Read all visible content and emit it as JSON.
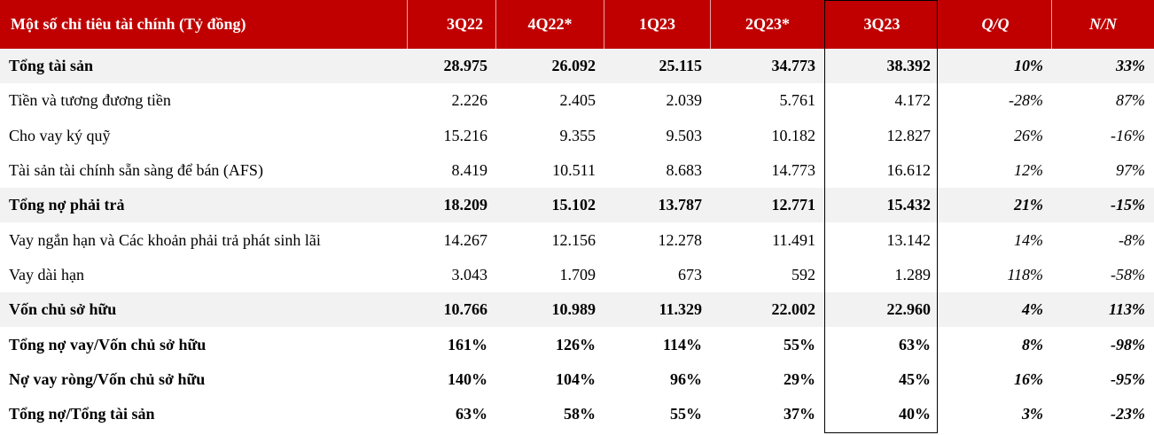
{
  "header": {
    "title": "Một số chỉ tiêu tài chính (Tỷ đồng)",
    "columns": [
      "3Q22",
      "4Q22*",
      "1Q23",
      "2Q23*",
      "3Q23",
      "Q/Q",
      "N/N"
    ]
  },
  "rows": [
    {
      "label": "Tổng tài sản",
      "values": [
        "28.975",
        "26.092",
        "25.115",
        "34.773",
        "38.392",
        "10%",
        "33%"
      ]
    },
    {
      "label": "Tiền và tương đương tiền",
      "values": [
        "2.226",
        "2.405",
        "2.039",
        "5.761",
        "4.172",
        "-28%",
        "87%"
      ]
    },
    {
      "label": "Cho vay ký quỹ",
      "values": [
        "15.216",
        "9.355",
        "9.503",
        "10.182",
        "12.827",
        "26%",
        "-16%"
      ]
    },
    {
      "label": "Tài sản tài chính sẵn sàng để bán (AFS)",
      "values": [
        "8.419",
        "10.511",
        "8.683",
        "14.773",
        "16.612",
        "12%",
        "97%"
      ]
    },
    {
      "label": "Tổng nợ phải trả",
      "values": [
        "18.209",
        "15.102",
        "13.787",
        "12.771",
        "15.432",
        "21%",
        "-15%"
      ]
    },
    {
      "label": "Vay ngắn hạn và Các khoản phải trả phát sinh lãi",
      "values": [
        "14.267",
        "12.156",
        "12.278",
        "11.491",
        "13.142",
        "14%",
        "-8%"
      ]
    },
    {
      "label": "Vay dài hạn",
      "values": [
        "3.043",
        "1.709",
        "673",
        "592",
        "1.289",
        "118%",
        "-58%"
      ]
    },
    {
      "label": "Vốn chủ sở hữu",
      "values": [
        "10.766",
        "10.989",
        "11.329",
        "22.002",
        "22.960",
        "4%",
        "113%"
      ]
    },
    {
      "label": "Tổng nợ vay/Vốn chủ sở hữu",
      "values": [
        "161%",
        "126%",
        "114%",
        "55%",
        "63%",
        "8%",
        "-98%"
      ]
    },
    {
      "label": "Nợ vay ròng/Vốn chủ sở hữu",
      "values": [
        "140%",
        "104%",
        "96%",
        "29%",
        "45%",
        "16%",
        "-95%"
      ]
    },
    {
      "label": "Tổng nợ/Tổng tài sản",
      "values": [
        "63%",
        "58%",
        "55%",
        "37%",
        "40%",
        "3%",
        "-23%"
      ]
    }
  ],
  "colors": {
    "header_bg": "#c00000",
    "shade_bg": "#f2f2f2"
  }
}
